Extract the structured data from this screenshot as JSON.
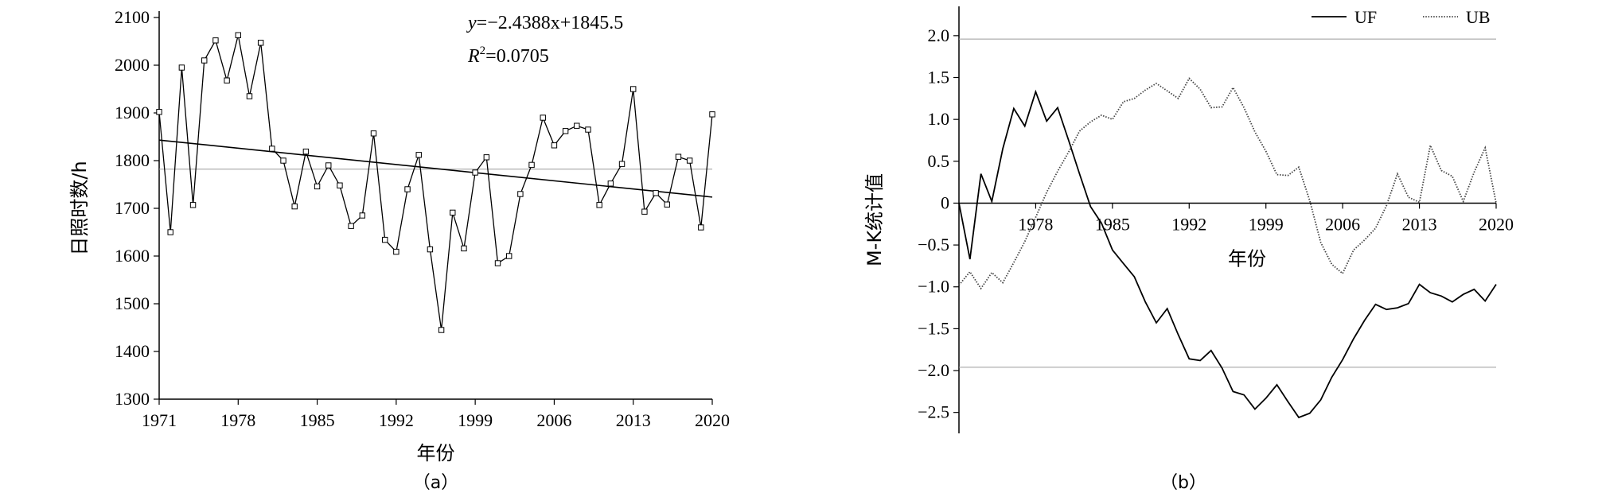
{
  "chart_data": [
    {
      "type": "line",
      "caption": "（a）",
      "xlabel": "年份",
      "ylabel": "日照时数/h",
      "ylim": [
        1300,
        2100
      ],
      "yticks": [
        1300,
        1400,
        1500,
        1600,
        1700,
        1800,
        1900,
        2000,
        2100
      ],
      "xlim": [
        1971,
        2020
      ],
      "xticks": [
        1971,
        1978,
        1985,
        1992,
        1999,
        2006,
        2013,
        2020
      ],
      "annotation_equation": "y=−2.4388x+1845.5",
      "annotation_r2_label": "R",
      "annotation_r2_sup": "2",
      "annotation_r2_value": "=0.0705",
      "mean_line": 1782,
      "trend": {
        "slope": -2.4388,
        "intercept": 1845.5
      },
      "series": [
        {
          "marker": "square",
          "x": [
            1971,
            1972,
            1973,
            1974,
            1975,
            1976,
            1977,
            1978,
            1979,
            1980,
            1981,
            1982,
            1983,
            1984,
            1985,
            1986,
            1987,
            1988,
            1989,
            1990,
            1991,
            1992,
            1993,
            1994,
            1995,
            1996,
            1997,
            1998,
            1999,
            2000,
            2001,
            2002,
            2003,
            2004,
            2005,
            2006,
            2007,
            2008,
            2009,
            2010,
            2011,
            2012,
            2013,
            2014,
            2015,
            2016,
            2017,
            2018,
            2019,
            2020
          ],
          "values": [
            1902,
            1650,
            1995,
            1707,
            2010,
            2052,
            1968,
            2063,
            1935,
            2047,
            1825,
            1800,
            1704,
            1819,
            1746,
            1790,
            1748,
            1663,
            1685,
            1857,
            1634,
            1609,
            1740,
            1812,
            1614,
            1445,
            1691,
            1616,
            1775,
            1807,
            1585,
            1600,
            1730,
            1791,
            1890,
            1832,
            1862,
            1873,
            1865,
            1707,
            1752,
            1793,
            1950,
            1693,
            1732,
            1708,
            1808,
            1800,
            1660,
            1897
          ]
        }
      ]
    },
    {
      "type": "line",
      "caption": "（b）",
      "xlabel": "年份",
      "ylabel": "M-K统计值",
      "ylim": [
        -2.75,
        2.35
      ],
      "yticks": [
        -2.5,
        -2.0,
        -1.5,
        -1.0,
        -0.5,
        0,
        0.5,
        1.0,
        1.5,
        2.0
      ],
      "ytick_labels": [
        "−2.5",
        "−2.0",
        "−1.5",
        "−1.0",
        "−0.5",
        "0",
        "0.5",
        "1.0",
        "1.5",
        "2.0"
      ],
      "xlim": [
        1971,
        2020
      ],
      "xticks": [
        1978,
        1985,
        1992,
        1999,
        2006,
        2013,
        2020
      ],
      "critical_lines": [
        1.96,
        -1.96
      ],
      "legend_position": "top-right",
      "x": [
        1971,
        1972,
        1973,
        1974,
        1975,
        1976,
        1977,
        1978,
        1979,
        1980,
        1981,
        1982,
        1983,
        1984,
        1985,
        1986,
        1987,
        1988,
        1989,
        1990,
        1991,
        1992,
        1993,
        1994,
        1995,
        1996,
        1997,
        1998,
        1999,
        2000,
        2001,
        2002,
        2003,
        2004,
        2005,
        2006,
        2007,
        2008,
        2009,
        2010,
        2011,
        2012,
        2013,
        2014,
        2015,
        2016,
        2017,
        2018,
        2019,
        2020
      ],
      "series": [
        {
          "name": "UF",
          "style": "solid",
          "values": [
            0,
            -0.67,
            0.35,
            0.02,
            0.65,
            1.13,
            0.92,
            1.33,
            0.98,
            1.14,
            0.75,
            0.35,
            -0.04,
            -0.24,
            -0.56,
            -0.72,
            -0.88,
            -1.18,
            -1.43,
            -1.26,
            -1.57,
            -1.86,
            -1.88,
            -1.76,
            -1.97,
            -2.25,
            -2.29,
            -2.46,
            -2.33,
            -2.17,
            -2.37,
            -2.56,
            -2.51,
            -2.35,
            -2.08,
            -1.87,
            -1.62,
            -1.4,
            -1.21,
            -1.27,
            -1.25,
            -1.2,
            -0.97,
            -1.07,
            -1.11,
            -1.18,
            -1.09,
            -1.03,
            -1.17,
            -0.97
          ]
        },
        {
          "name": "UB",
          "style": "dotted",
          "values": [
            -0.98,
            -0.82,
            -1.02,
            -0.83,
            -0.95,
            -0.71,
            -0.46,
            -0.17,
            0.13,
            0.38,
            0.61,
            0.86,
            0.97,
            1.05,
            1.0,
            1.21,
            1.25,
            1.35,
            1.43,
            1.34,
            1.25,
            1.49,
            1.36,
            1.14,
            1.15,
            1.38,
            1.14,
            0.85,
            0.62,
            0.34,
            0.33,
            0.43,
            0.03,
            -0.47,
            -0.73,
            -0.84,
            -0.56,
            -0.44,
            -0.3,
            -0.03,
            0.35,
            0.07,
            0.01,
            0.69,
            0.39,
            0.32,
            0.02,
            0.37,
            0.66,
            0.0
          ]
        }
      ]
    }
  ]
}
